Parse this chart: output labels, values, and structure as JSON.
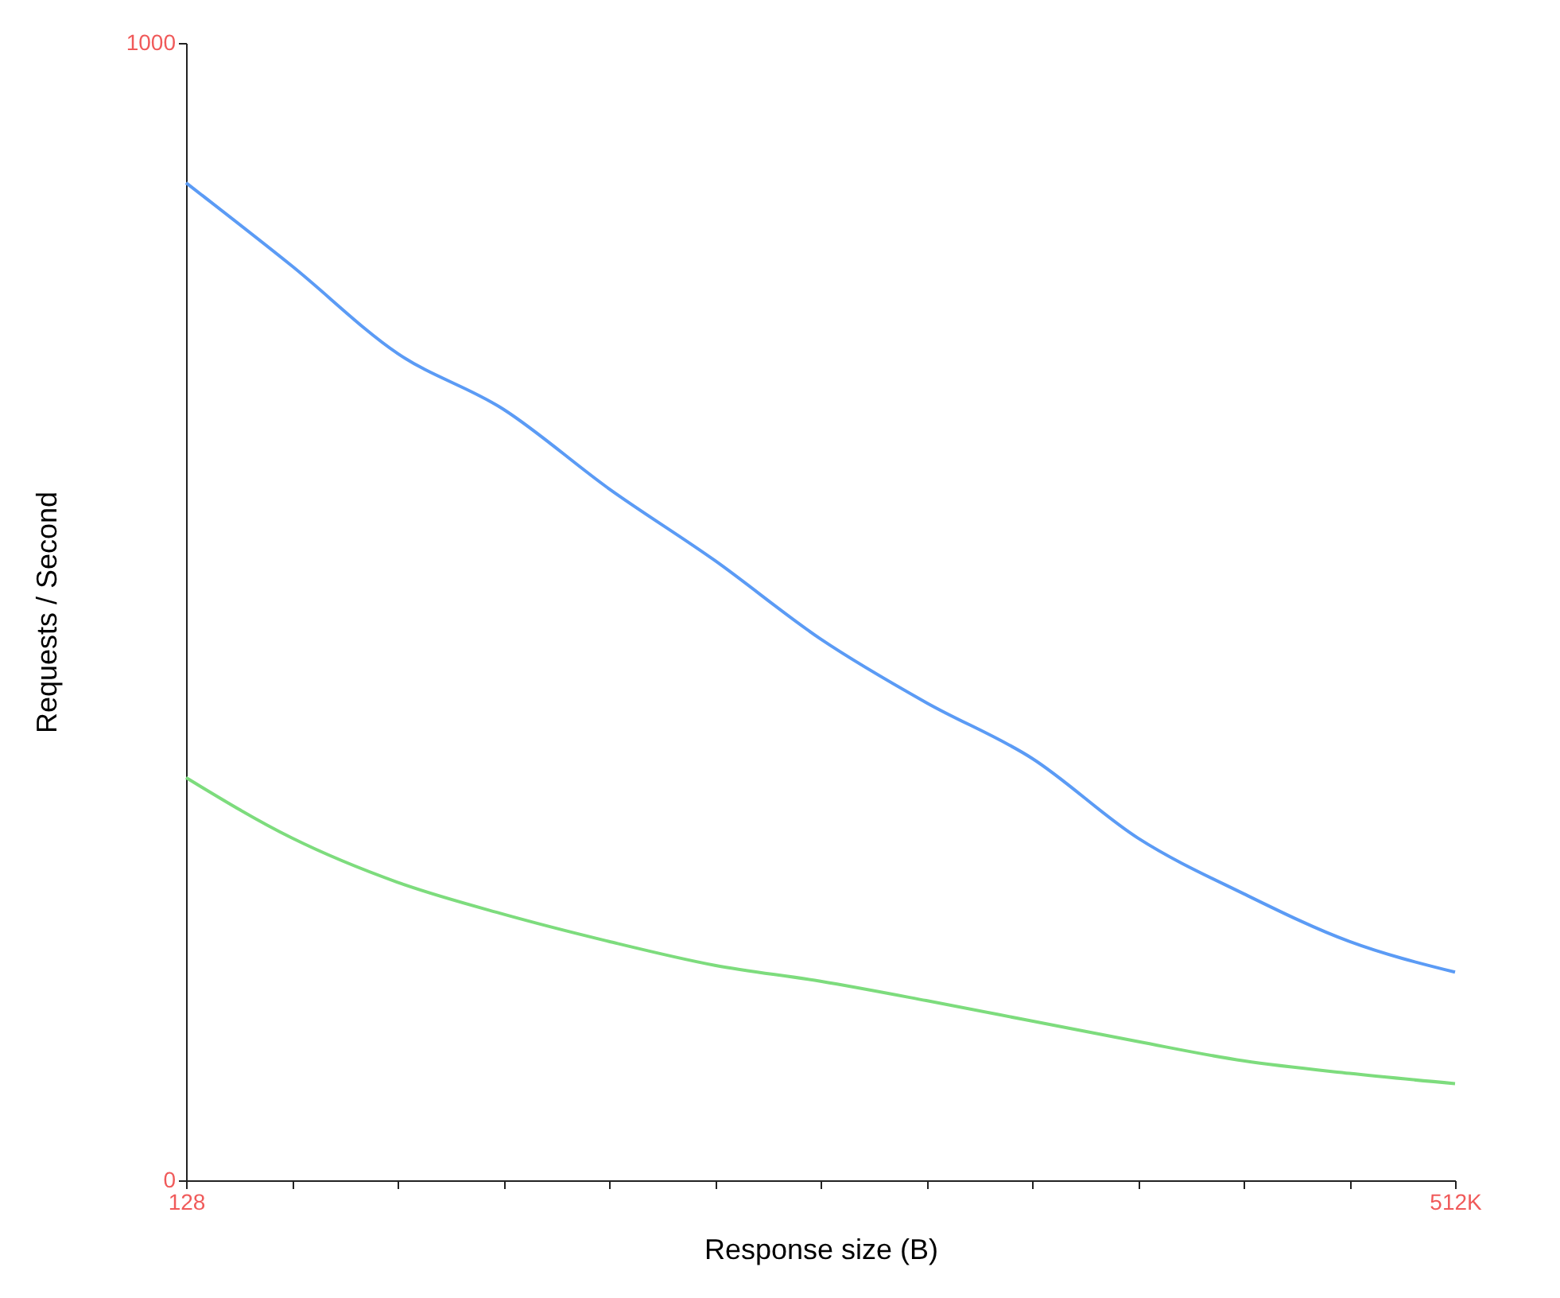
{
  "chart_data": {
    "type": "line",
    "xlabel": "Response size (B)",
    "ylabel": "Requests / Second",
    "categories": [
      "128",
      null,
      null,
      null,
      null,
      null,
      null,
      null,
      null,
      null,
      null,
      null,
      "512K"
    ],
    "ylim": [
      0,
      1000
    ],
    "yticks": [
      0,
      1000
    ],
    "grid": false,
    "series": [
      {
        "color": "#5b9bf5",
        "values": [
          877,
          804,
          727,
          678,
          608,
          545,
          476,
          420,
          371,
          301,
          252,
          210,
          183
        ]
      },
      {
        "color": "#7ddc7d",
        "values": [
          354,
          301,
          262,
          234,
          210,
          189,
          175,
          158,
          140,
          122,
          105,
          94,
          85
        ]
      }
    ]
  }
}
